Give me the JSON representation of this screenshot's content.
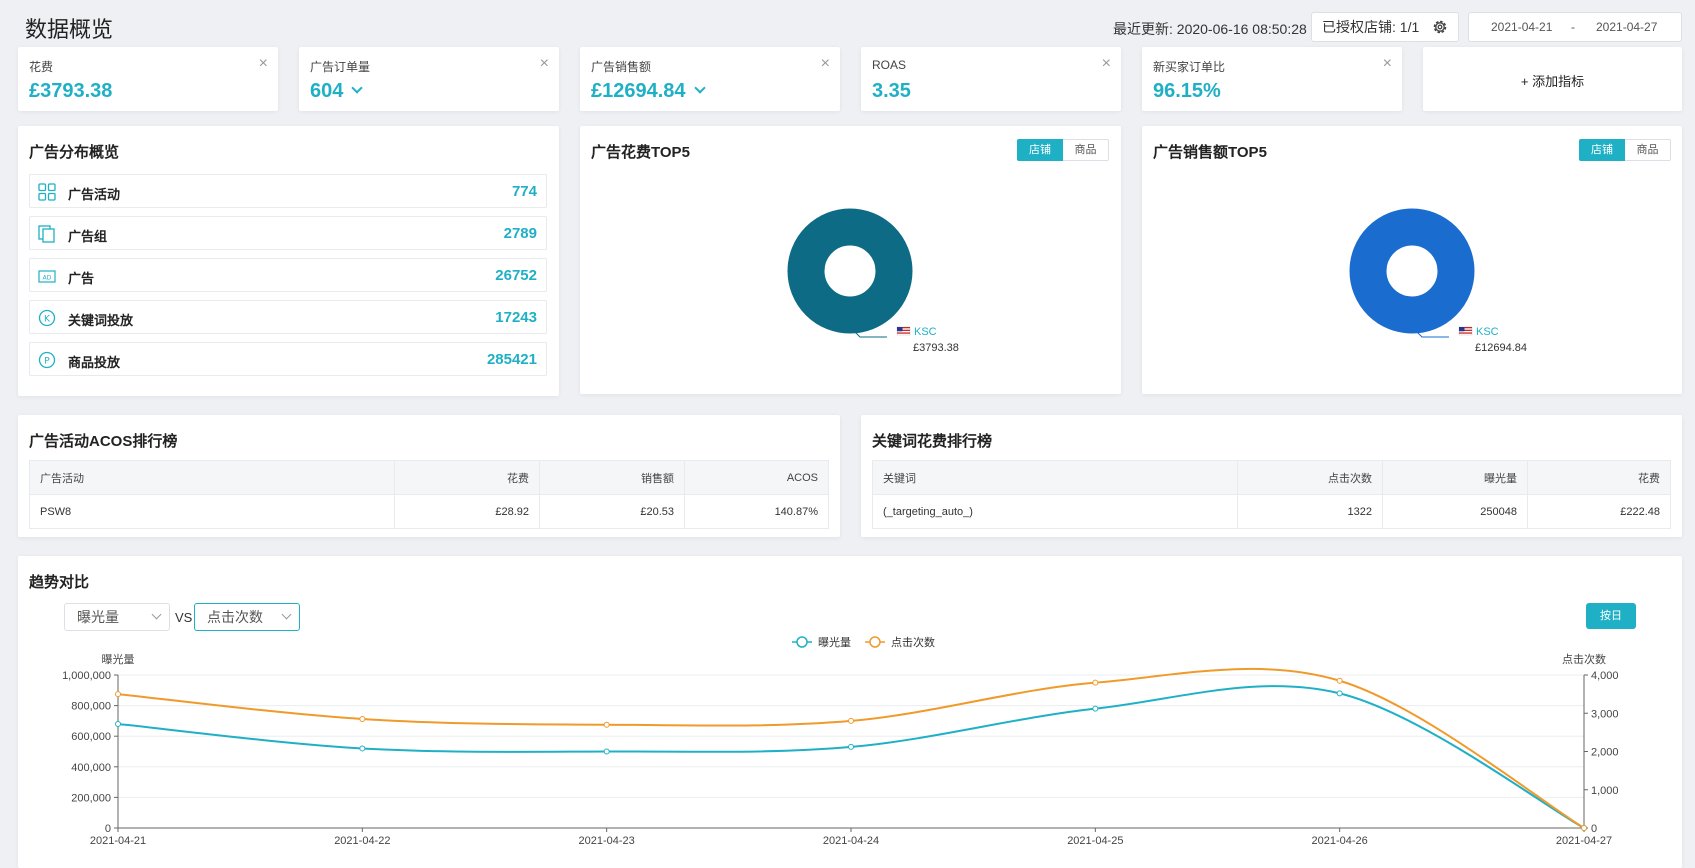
{
  "header": {
    "title": "数据概览",
    "update_label": "最近更新:",
    "update_time": "2020-06-16 08:50:28",
    "auth_label": "已授权店铺:",
    "auth_value": "1/1",
    "date_start": "2021-04-21",
    "date_sep": "-",
    "date_end": "2021-04-27"
  },
  "kpis": [
    {
      "label": "花费",
      "value": "£3793.38",
      "close": "×"
    },
    {
      "label": "广告订单量",
      "value": "604",
      "close": "×"
    },
    {
      "label": "广告销售额",
      "value": "£12694.84",
      "close": "×"
    },
    {
      "label": "ROAS",
      "value": "3.35",
      "close": "×"
    },
    {
      "label": "新买家订单比",
      "value": "96.15%",
      "close": "×"
    }
  ],
  "add_metric": "+ 添加指标",
  "distribution": {
    "title": "广告分布概览",
    "rows": [
      {
        "label": "广告活动",
        "value": "774",
        "icon": "grid-icon"
      },
      {
        "label": "广告组",
        "value": "2789",
        "icon": "copy-icon"
      },
      {
        "label": "广告",
        "value": "26752",
        "icon": "ad-icon"
      },
      {
        "label": "关键词投放",
        "value": "17243",
        "icon": "k-circle-icon"
      },
      {
        "label": "商品投放",
        "value": "285421",
        "icon": "p-circle-icon"
      }
    ]
  },
  "spend_top5": {
    "title": "广告花费TOP5",
    "toggle_on": "店铺",
    "toggle_off": "商品",
    "legend_name": "KSC",
    "legend_value": "£3793.38",
    "color": "#0d6b85"
  },
  "sales_top5": {
    "title": "广告销售额TOP5",
    "toggle_on": "店铺",
    "toggle_off": "商品",
    "legend_name": "KSC",
    "legend_value": "£12694.84",
    "color": "#1a6ccf"
  },
  "acos_table": {
    "title": "广告活动ACOS排行榜",
    "headers": [
      "广告活动",
      "花费",
      "销售额",
      "ACOS"
    ],
    "rows": [
      [
        "PSW8",
        "£28.92",
        "£20.53",
        "140.87%"
      ]
    ]
  },
  "keyword_table": {
    "title": "关键词花费排行榜",
    "headers": [
      "关键词",
      "点击次数",
      "曝光量",
      "花费"
    ],
    "rows": [
      [
        "(_targeting_auto_)",
        "1322",
        "250048",
        "£222.48"
      ]
    ]
  },
  "trend": {
    "title": "趋势对比",
    "select_left": "曝光量",
    "vs": "VS",
    "select_right": "点击次数",
    "day_button": "按日",
    "legend": [
      "曝光量",
      "点击次数"
    ]
  },
  "chart_data": {
    "type": "line",
    "x": [
      "2021-04-21",
      "2021-04-22",
      "2021-04-23",
      "2021-04-24",
      "2021-04-25",
      "2021-04-26",
      "2021-04-27"
    ],
    "series": [
      {
        "name": "曝光量",
        "axis": "left",
        "color": "#1fb0c6",
        "values": [
          680000,
          520000,
          500000,
          530000,
          780000,
          880000,
          0
        ]
      },
      {
        "name": "点击次数",
        "axis": "right",
        "color": "#f09a2a",
        "values": [
          3500,
          2850,
          2700,
          2800,
          3800,
          3850,
          0
        ]
      }
    ],
    "ylabel_left": "曝光量",
    "ylabel_right": "点击次数",
    "ylim_left": [
      0,
      1000000
    ],
    "ylim_right": [
      0,
      4000
    ],
    "yticks_left": [
      "0",
      "200,000",
      "400,000",
      "600,000",
      "800,000",
      "1,000,000"
    ],
    "yticks_right": [
      "0",
      "1,000",
      "2,000",
      "3,000",
      "4,000"
    ],
    "grid": true,
    "legend_position": "top-center"
  }
}
